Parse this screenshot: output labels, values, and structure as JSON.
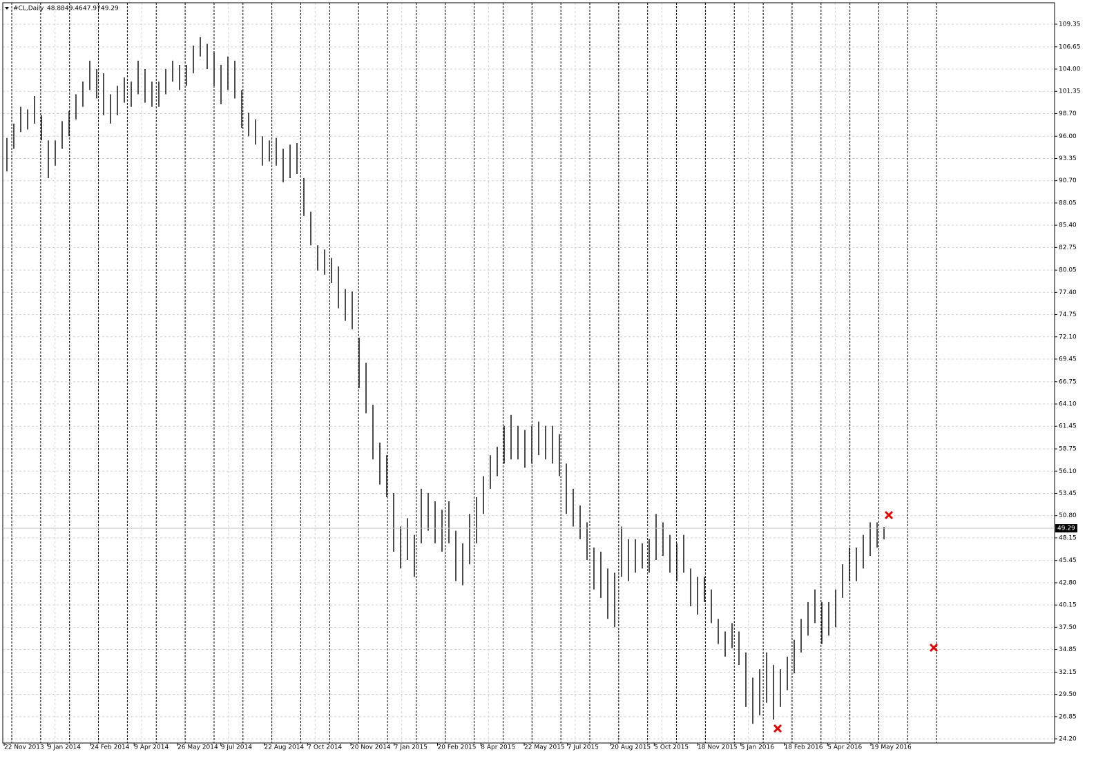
{
  "chart_data": {
    "type": "ohlc",
    "title": "#CL,Daily",
    "last": {
      "open": 48.88,
      "high": 49.46,
      "low": 47.97,
      "close": 49.29
    },
    "ylim": [
      23.71,
      111.9
    ],
    "yticks": [
      109.35,
      106.65,
      {
        "value": 104,
        "label": "104.00"
      },
      101.35,
      {
        "value": 98.7,
        "label": "98.70"
      },
      {
        "value": 96,
        "label": "96.00"
      },
      93.35,
      {
        "value": 90.7,
        "label": "90.70"
      },
      88.05,
      {
        "value": 85.4,
        "label": "85.40"
      },
      82.75,
      80.05,
      {
        "value": 77.4,
        "label": "77.40"
      },
      74.75,
      {
        "value": 72.1,
        "label": "72.10"
      },
      69.45,
      66.75,
      {
        "value": 64.1,
        "label": "64.10"
      },
      61.45,
      58.75,
      {
        "value": 56.1,
        "label": "56.10"
      },
      53.45,
      {
        "value": 50.8,
        "label": "50.80"
      },
      48.15,
      45.45,
      {
        "value": 42.8,
        "label": "42.80"
      },
      40.15,
      {
        "value": 37.5,
        "label": "37.50"
      },
      34.85,
      32.15,
      {
        "value": 29.5,
        "label": "29.50"
      },
      26.85,
      {
        "value": 24.2,
        "label": "24.20"
      }
    ],
    "date_labels": [
      "22 Nov 2013",
      "9 Jan 2014",
      "24 Feb 2014",
      "9 Apr 2014",
      "26 May 2014",
      "9 Jul 2014",
      "22 Aug 2014",
      "7 Oct 2014",
      "20 Nov 2014",
      "7 Jan 2015",
      "20 Feb 2015",
      "8 Apr 2015",
      "22 May 2015",
      "7 Jul 2015",
      "20 Aug 2015",
      "5 Oct 2015",
      "18 Nov 2015",
      "5 Jan 2016",
      "18 Feb 2016",
      "5 Apr 2016",
      "19 May 2016"
    ],
    "high": [
      95.8,
      97.5,
      99.5,
      99.2,
      100.8,
      98.5,
      95.5,
      95.5,
      97.8,
      99,
      101,
      102.5,
      105,
      104,
      103.5,
      101,
      102,
      103,
      102.5,
      105,
      104,
      102.5,
      102.5,
      104,
      105,
      104.5,
      104.5,
      106.8,
      107.8,
      107,
      106,
      104.5,
      105.5,
      105,
      101.5,
      98.8,
      98,
      96,
      95.5,
      95.8,
      94.5,
      95,
      95.2,
      91,
      87,
      83,
      82.5,
      81.5,
      80.5,
      77.8,
      77.5,
      72,
      69,
      64,
      59.5,
      58,
      53.5,
      49.5,
      50.5,
      48.5,
      54,
      53.5,
      52.5,
      51.5,
      52.5,
      49,
      47.5,
      51,
      53,
      55.5,
      58,
      59,
      61.5,
      62.8,
      61.5,
      61,
      61.5,
      62,
      61.5,
      61.5,
      60.5,
      57,
      54,
      52,
      50,
      47,
      46.5,
      44.5,
      44,
      49.5,
      48,
      48,
      47.5,
      48,
      51,
      50,
      48.5,
      47.5,
      48.5,
      44.5,
      43.5,
      43.5,
      42,
      38.5,
      37,
      38,
      37,
      34.5,
      31.5,
      32.5,
      34.5,
      33,
      32.5,
      34,
      36,
      38.5,
      40.5,
      42,
      40.5,
      40.5,
      42,
      45,
      47,
      47,
      48.5,
      50,
      50,
      49.46
    ],
    "low": [
      91.8,
      94.5,
      96.5,
      96.8,
      97.5,
      95.5,
      91,
      92.5,
      94.5,
      96,
      98,
      99.5,
      101.5,
      100.5,
      98.5,
      97.5,
      98.5,
      100,
      99.5,
      101,
      100,
      99.5,
      99.5,
      101,
      102.5,
      101.5,
      102,
      103.5,
      105.5,
      104,
      102,
      99.8,
      101.5,
      100.5,
      97,
      96,
      95,
      92.5,
      93,
      92.5,
      90.5,
      91,
      91.5,
      86.5,
      83,
      80,
      79.5,
      78.5,
      75.5,
      74,
      73,
      66,
      63,
      57.5,
      54.5,
      53,
      46.5,
      44.5,
      45.5,
      43.5,
      47.5,
      49,
      47.5,
      46.5,
      47.5,
      43,
      42.5,
      45,
      47.5,
      51,
      54,
      55.5,
      57,
      57.5,
      57.5,
      56.5,
      57,
      58,
      57.5,
      57,
      55.5,
      51,
      49.5,
      48,
      45.5,
      42,
      41,
      38.5,
      37.5,
      43.5,
      43,
      44,
      44.5,
      44,
      45.5,
      46,
      44,
      43,
      44,
      40,
      39,
      40.5,
      38,
      35.5,
      34,
      35,
      33,
      28,
      26,
      27,
      28.5,
      26.5,
      28,
      30,
      32,
      34.5,
      36.5,
      38,
      35.5,
      36.5,
      37.5,
      41,
      43,
      43,
      44.5,
      46,
      47,
      47.97
    ],
    "color": "#000000",
    "grid": true
  }
}
